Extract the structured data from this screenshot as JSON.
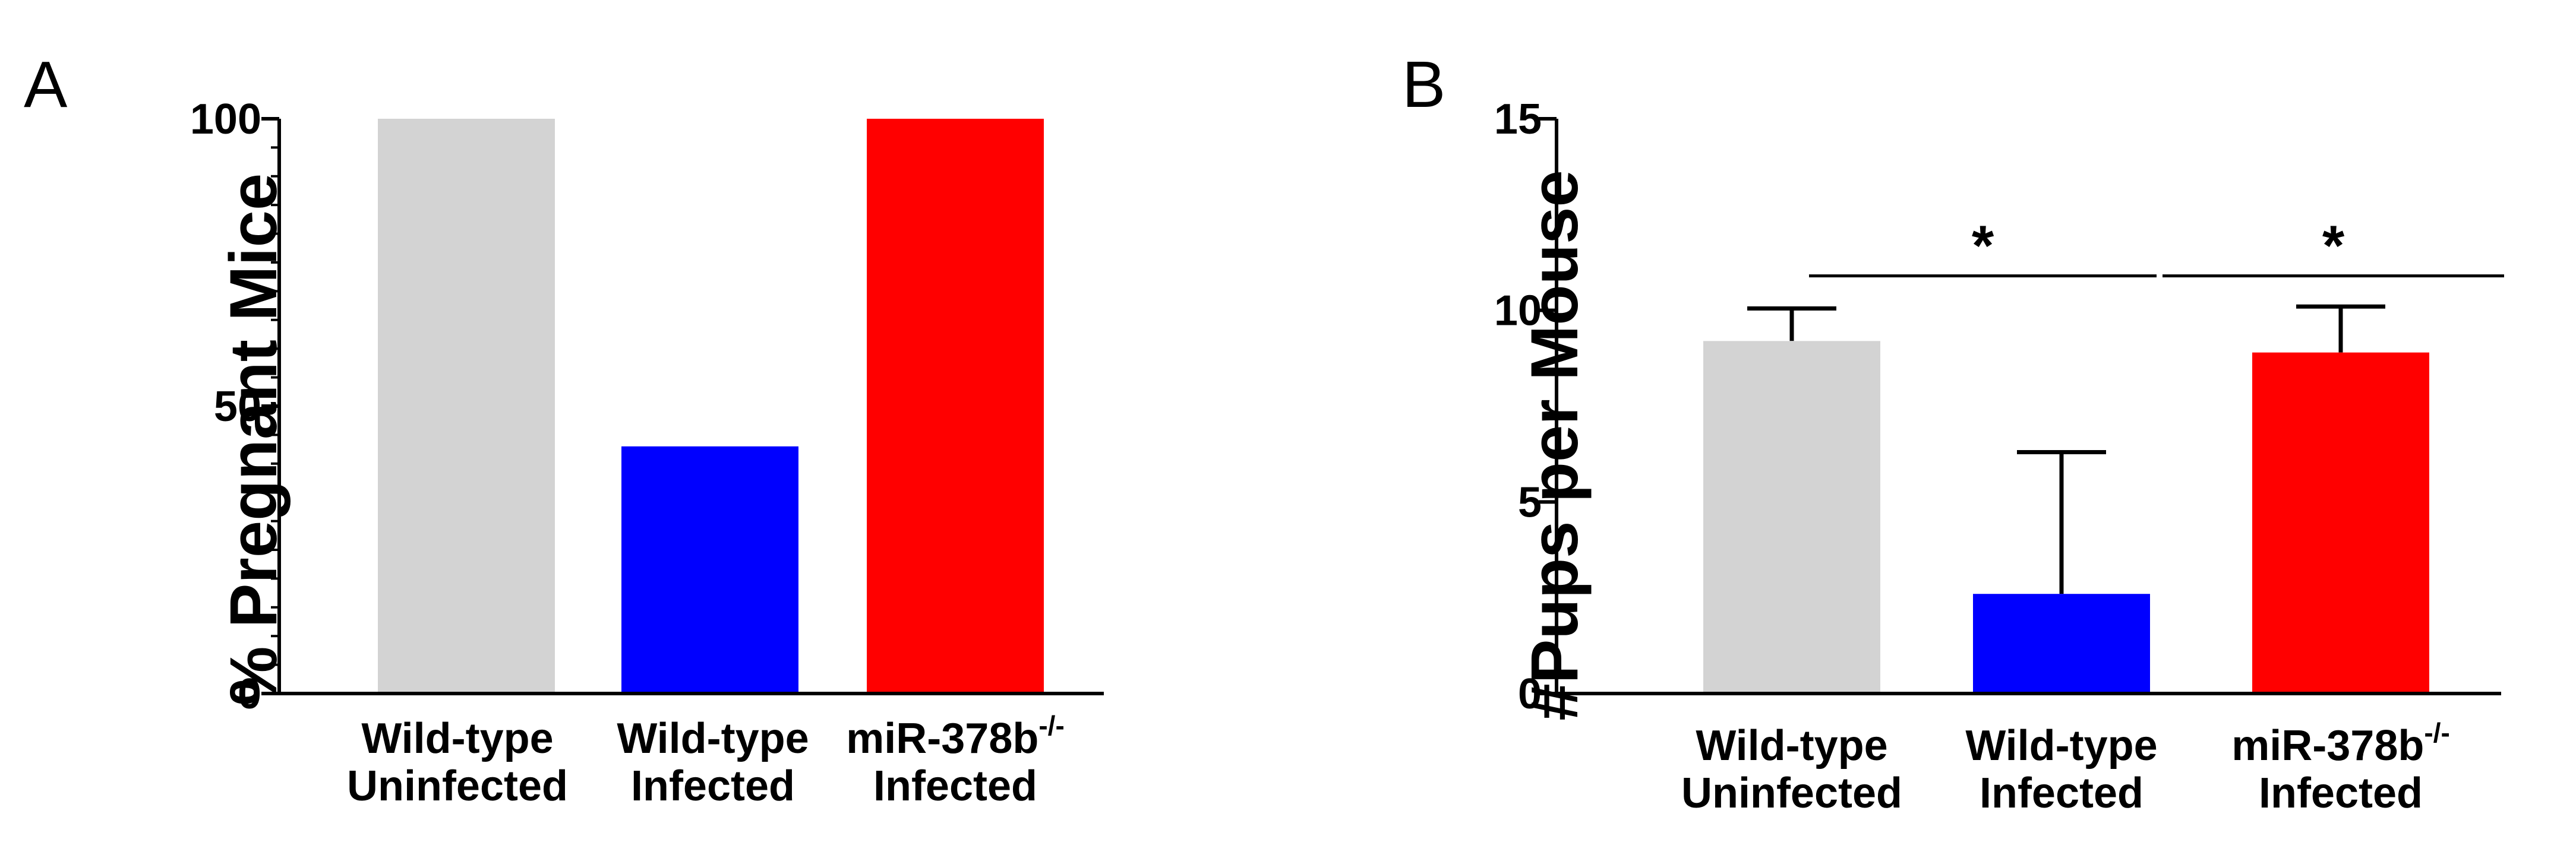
{
  "chart_data": [
    {
      "panel": "A",
      "type": "bar",
      "ylabel": "% Pregnant Mice",
      "ylim": [
        0,
        100
      ],
      "yticks": [
        0,
        50,
        100
      ],
      "categories": [
        {
          "line1": "Wild-type",
          "line2": "Uninfected"
        },
        {
          "line1": "Wild-type",
          "line2": "Infected"
        },
        {
          "line1": "miR-378b",
          "sup": "-/-",
          "line2": "Infected"
        }
      ],
      "values": [
        100,
        43,
        100
      ],
      "colors": [
        "#d3d3d3",
        "#0000ff",
        "#ff0000"
      ]
    },
    {
      "panel": "B",
      "type": "bar",
      "ylabel": "#Pups per Mouse",
      "ylim": [
        0,
        15
      ],
      "yticks": [
        0,
        5,
        10,
        15
      ],
      "categories": [
        {
          "line1": "Wild-type",
          "line2": "Uninfected"
        },
        {
          "line1": "Wild-type",
          "line2": "Infected"
        },
        {
          "line1": "miR-378b",
          "sup": "-/-",
          "line2": "Infected"
        }
      ],
      "values": [
        9.2,
        2.6,
        8.9
      ],
      "error_upper": [
        0.85,
        3.7,
        1.2
      ],
      "colors": [
        "#d3d3d3",
        "#0000ff",
        "#ff0000"
      ],
      "significance": [
        {
          "from": 0,
          "to": 1,
          "y": 10.9,
          "label": "*"
        },
        {
          "from": 1,
          "to": 2,
          "y": 10.9,
          "label": "*"
        }
      ]
    }
  ]
}
